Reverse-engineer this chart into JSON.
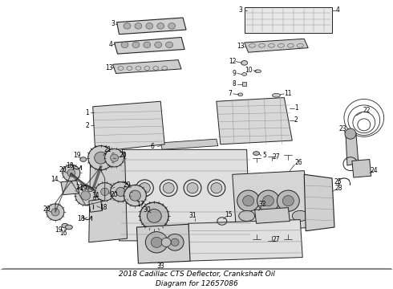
{
  "title": "2018 Cadillac CTS Deflector, Crankshaft Oil\nDiagram for 12657086",
  "title_fontsize": 6.5,
  "bg_color": "#ffffff",
  "line_color": "#222222",
  "text_color": "#000000",
  "label_fontsize": 5.5,
  "fig_width": 4.9,
  "fig_height": 3.6,
  "dpi": 100,
  "border_color": "#aaaaaa"
}
